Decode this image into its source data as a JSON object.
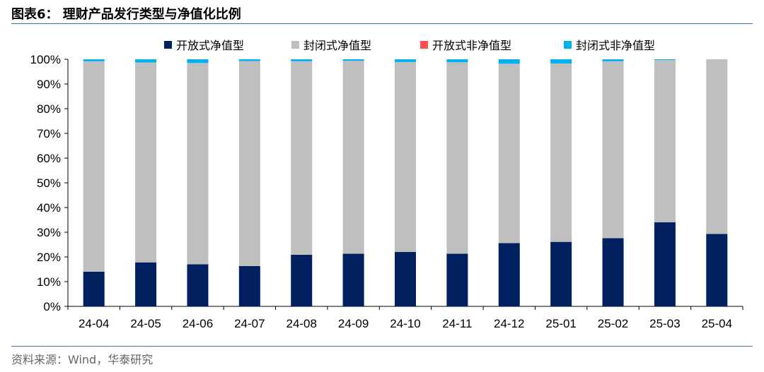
{
  "header": {
    "title": "图表6：  理财产品发行类型与净值化比例"
  },
  "footer": {
    "source": "资料来源：Wind，华泰研究"
  },
  "chart_data": {
    "type": "bar",
    "stacked": true,
    "percent": true,
    "categories": [
      "24-04",
      "24-05",
      "24-06",
      "24-07",
      "24-08",
      "24-09",
      "24-10",
      "24-11",
      "24-12",
      "25-01",
      "25-02",
      "25-03",
      "25-04"
    ],
    "series": [
      {
        "name": "开放式净值型",
        "color": "#002060",
        "values": [
          14.0,
          17.8,
          17.0,
          16.3,
          20.9,
          21.3,
          22.0,
          21.3,
          25.6,
          26.1,
          27.6,
          34.0,
          29.3
        ]
      },
      {
        "name": "封闭式净值型",
        "color": "#bfbfbf",
        "values": [
          85.2,
          80.9,
          81.5,
          83.0,
          78.3,
          78.1,
          76.9,
          77.5,
          72.6,
          72.2,
          71.6,
          65.7,
          70.7
        ]
      },
      {
        "name": "开放式非净值型",
        "color": "#ff5050",
        "values": [
          0,
          0,
          0,
          0,
          0,
          0,
          0,
          0,
          0,
          0,
          0,
          0,
          0
        ]
      },
      {
        "name": "封闭式非净值型",
        "color": "#00b0f0",
        "values": [
          0.8,
          1.3,
          1.5,
          0.7,
          0.8,
          0.6,
          1.1,
          1.2,
          1.8,
          1.7,
          0.8,
          0.3,
          0
        ]
      }
    ],
    "ylim": [
      0,
      100
    ],
    "yticks": [
      "0%",
      "10%",
      "20%",
      "30%",
      "40%",
      "50%",
      "60%",
      "70%",
      "80%",
      "90%",
      "100%"
    ],
    "legend_position": "top",
    "grid": false
  }
}
